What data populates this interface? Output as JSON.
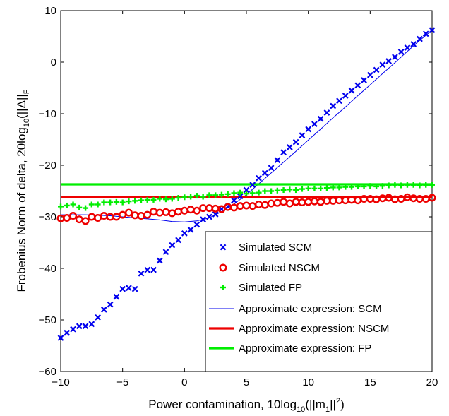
{
  "chart_data": {
    "type": "line",
    "title": "",
    "xlabel": "Power contamination, 10log",
    "xlabel_sub": "10",
    "xlabel_tail": "(||m",
    "xlabel_sub2": "1",
    "xlabel_end": "||",
    "xlabel_sup": "2",
    "xlabel_close": ")",
    "ylabel": "Frobenius Norm of delta, 20log",
    "ylabel_sub": "10",
    "ylabel_tail": "(||Δ||",
    "ylabel_sub2": "F",
    "xlim": [
      -10,
      20
    ],
    "ylim": [
      -60,
      10
    ],
    "xticks": [
      -10,
      -5,
      0,
      5,
      10,
      15,
      20
    ],
    "yticks": [
      -60,
      -50,
      -40,
      -30,
      -20,
      -10,
      0,
      10
    ],
    "xtick_labels": [
      "−10",
      "−5",
      "0",
      "5",
      "10",
      "15",
      "20"
    ],
    "ytick_labels": [
      "−60",
      "−50",
      "−40",
      "−30",
      "−20",
      "−10",
      "0",
      "10"
    ],
    "grid": false,
    "legend_position": "bottom-right",
    "series": [
      {
        "name": "Simulated SCM",
        "marker": "x",
        "color": "#0000ee",
        "x": [
          -10,
          -9.5,
          -9,
          -8.5,
          -8,
          -7.5,
          -7,
          -6.5,
          -6,
          -5.5,
          -5,
          -4.5,
          -4,
          -3.5,
          -3,
          -2.5,
          -2,
          -1.5,
          -1,
          -0.5,
          0,
          0.5,
          1,
          1.5,
          2,
          2.5,
          3,
          3.5,
          4,
          4.5,
          5,
          5.5,
          6,
          6.5,
          7,
          7.5,
          8,
          8.5,
          9,
          9.5,
          10,
          10.5,
          11,
          11.5,
          12,
          12.5,
          13,
          13.5,
          14,
          14.5,
          15,
          15.5,
          16,
          16.5,
          17,
          17.5,
          18,
          18.5,
          19,
          19.5,
          20
        ],
        "y": [
          -53.5,
          -52.5,
          -51.8,
          -51.2,
          -51.2,
          -50.8,
          -49.5,
          -48,
          -47,
          -45.5,
          -44,
          -43.8,
          -44,
          -41,
          -40.3,
          -40.3,
          -38.5,
          -36.8,
          -35.5,
          -34.5,
          -33.2,
          -32.5,
          -31.5,
          -30.5,
          -30,
          -29.5,
          -28.5,
          -28,
          -26.8,
          -26,
          -24.8,
          -23.8,
          -22.5,
          -21.5,
          -20.5,
          -19,
          -17.5,
          -16.5,
          -15.5,
          -14.2,
          -13,
          -12,
          -11,
          -9.8,
          -8.5,
          -7.5,
          -6.5,
          -5.5,
          -4.5,
          -3.5,
          -2.5,
          -1.5,
          -0.5,
          0.2,
          1,
          2,
          2.8,
          3.5,
          4.5,
          5.5,
          6.2
        ]
      },
      {
        "name": "Simulated NSCM",
        "marker": "o",
        "color": "#ee0000",
        "x": [
          -10,
          -9.5,
          -9,
          -8.5,
          -8,
          -7.5,
          -7,
          -6.5,
          -6,
          -5.5,
          -5,
          -4.5,
          -4,
          -3.5,
          -3,
          -2.5,
          -2,
          -1.5,
          -1,
          -0.5,
          0,
          0.5,
          1,
          1.5,
          2,
          2.5,
          3,
          3.5,
          4,
          4.5,
          5,
          5.5,
          6,
          6.5,
          7,
          7.5,
          8,
          8.5,
          9,
          9.5,
          10,
          10.5,
          11,
          11.5,
          12,
          12.5,
          13,
          13.5,
          14,
          14.5,
          15,
          15.5,
          16,
          16.5,
          17,
          17.5,
          18,
          18.5,
          19,
          19.5,
          20
        ],
        "y": [
          -30.3,
          -30.2,
          -29.8,
          -30.5,
          -30.8,
          -30,
          -30.2,
          -29.8,
          -30,
          -30,
          -29.6,
          -29.2,
          -29.7,
          -29.8,
          -29.6,
          -29,
          -29.2,
          -29.1,
          -29.3,
          -29,
          -28.8,
          -28.6,
          -28.8,
          -28.3,
          -28.3,
          -28.4,
          -28.5,
          -28.1,
          -28.2,
          -27.9,
          -27.8,
          -27.9,
          -27.6,
          -27.7,
          -27.4,
          -27.3,
          -27.1,
          -27.4,
          -27.1,
          -27.2,
          -27.1,
          -27,
          -27.1,
          -26.9,
          -26.9,
          -26.8,
          -26.8,
          -26.7,
          -26.8,
          -26.5,
          -26.5,
          -26.6,
          -26.4,
          -26.3,
          -26.6,
          -26.5,
          -26.2,
          -26.4,
          -26.5,
          -26.5,
          -26.3
        ]
      },
      {
        "name": "Simulated FP",
        "marker": "+",
        "color": "#00ee00",
        "x": [
          -10,
          -9.5,
          -9,
          -8.5,
          -8,
          -7.5,
          -7,
          -6.5,
          -6,
          -5.5,
          -5,
          -4.5,
          -4,
          -3.5,
          -3,
          -2.5,
          -2,
          -1.5,
          -1,
          -0.5,
          0,
          0.5,
          1,
          1.5,
          2,
          2.5,
          3,
          3.5,
          4,
          4.5,
          5,
          5.5,
          6,
          6.5,
          7,
          7.5,
          8,
          8.5,
          9,
          9.5,
          10,
          10.5,
          11,
          11.5,
          12,
          12.5,
          13,
          13.5,
          14,
          14.5,
          15,
          15.5,
          16,
          16.5,
          17,
          17.5,
          18,
          18.5,
          19,
          19.5,
          20
        ],
        "y": [
          -28,
          -27.8,
          -27.6,
          -28.2,
          -28.3,
          -27.6,
          -27.6,
          -27.2,
          -27.2,
          -27.1,
          -27.2,
          -27,
          -26.9,
          -26.8,
          -26.7,
          -26.7,
          -26.5,
          -26.6,
          -26.5,
          -26.3,
          -26.2,
          -26.1,
          -25.9,
          -26.1,
          -25.8,
          -25.8,
          -25.7,
          -25.6,
          -25.4,
          -25.3,
          -25.5,
          -25.4,
          -25.3,
          -25,
          -25,
          -24.9,
          -24.8,
          -24.7,
          -24.8,
          -24.6,
          -24.5,
          -24.5,
          -24.5,
          -24.4,
          -24.3,
          -24.3,
          -24.2,
          -24.2,
          -24.1,
          -24.1,
          -24,
          -24.1,
          -24,
          -23.9,
          -23.8,
          -23.9,
          -23.8,
          -23.8,
          -23.9,
          -23.8,
          -23.8
        ]
      },
      {
        "name": "Approximate expression: SCM",
        "line": "thin",
        "color": "#0000ee",
        "x": [
          -10,
          -9,
          -8,
          -7,
          -6,
          -5,
          -4,
          -3,
          -2,
          -1,
          0,
          1,
          2,
          3,
          4,
          5,
          6,
          7,
          8,
          9,
          10,
          11,
          12,
          13,
          14,
          15,
          16,
          17,
          18,
          19,
          20
        ],
        "y": [
          -29.6,
          -29.6,
          -29.6,
          -29.7,
          -29.8,
          -30.0,
          -30.2,
          -30.4,
          -30.6,
          -30.9,
          -31.0,
          -30.8,
          -30.2,
          -29.0,
          -27.5,
          -25.7,
          -23.6,
          -21.5,
          -19.4,
          -17.3,
          -15.1,
          -13.0,
          -10.8,
          -8.7,
          -6.5,
          -4.4,
          -2.2,
          -0.1,
          2.1,
          4.2,
          6.2
        ]
      },
      {
        "name": "Approximate expression: NSCM",
        "line": "thick",
        "color": "#ee0000",
        "x": [
          -10,
          20
        ],
        "y": [
          -26.2,
          -26.2
        ]
      },
      {
        "name": "Approximate expression: FP",
        "line": "thick",
        "color": "#00ee00",
        "x": [
          -10,
          20
        ],
        "y": [
          -23.7,
          -23.7
        ]
      }
    ]
  }
}
